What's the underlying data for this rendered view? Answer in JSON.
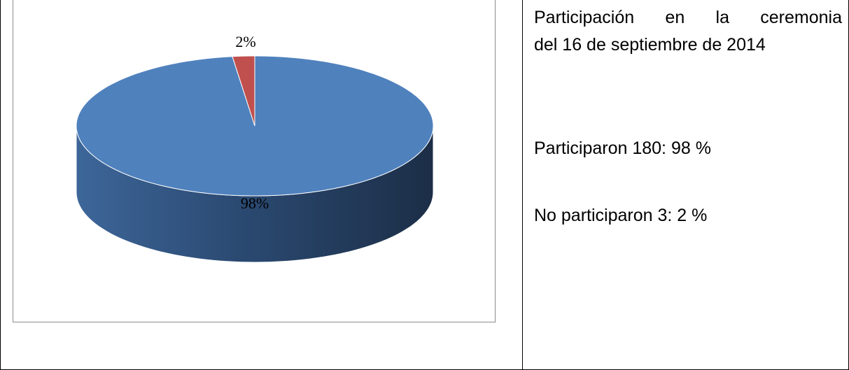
{
  "chart_data": {
    "type": "pie",
    "slices": [
      {
        "label": "98%",
        "value": 98,
        "color": "#4f81bd"
      },
      {
        "label": "2%",
        "value": 2,
        "color": "#c0504d"
      }
    ]
  },
  "side_panel": {
    "title_words_line1": [
      "Participación",
      "en",
      "la",
      "ceremonia"
    ],
    "title_line2": "del 16 de septiembre de 2014",
    "stat_participated": "Participaron 180: 98 %",
    "stat_not_participated": "No participaron 3: 2 %"
  }
}
